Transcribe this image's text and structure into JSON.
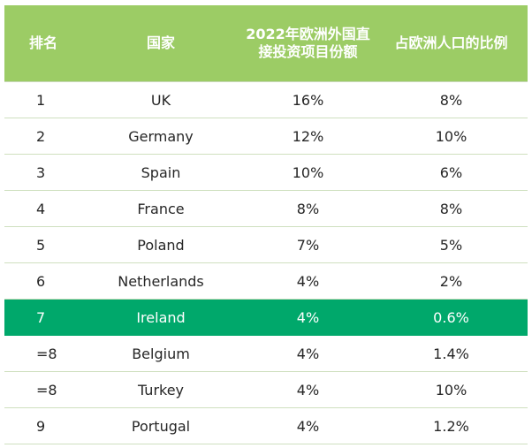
{
  "chart_data": {
    "type": "table",
    "columns": [
      "排名",
      "国家",
      "2022年欧洲外国直接投资项目份额",
      "占欧洲人口的比例"
    ],
    "rows": [
      {
        "rank": "1",
        "country": "UK",
        "fdi_share": "16%",
        "pop_share": "8%"
      },
      {
        "rank": "2",
        "country": "Germany",
        "fdi_share": "12%",
        "pop_share": "10%"
      },
      {
        "rank": "3",
        "country": "Spain",
        "fdi_share": "10%",
        "pop_share": "6%"
      },
      {
        "rank": "4",
        "country": "France",
        "fdi_share": "8%",
        "pop_share": "8%"
      },
      {
        "rank": "5",
        "country": "Poland",
        "fdi_share": "7%",
        "pop_share": "5%"
      },
      {
        "rank": "6",
        "country": "Netherlands",
        "fdi_share": "4%",
        "pop_share": "2%"
      },
      {
        "rank": "7",
        "country": "Ireland",
        "fdi_share": "4%",
        "pop_share": "0.6%",
        "highlight": true
      },
      {
        "rank": "=8",
        "country": "Belgium",
        "fdi_share": "4%",
        "pop_share": "1.4%"
      },
      {
        "rank": "=8",
        "country": "Turkey",
        "fdi_share": "4%",
        "pop_share": "10%"
      },
      {
        "rank": "9",
        "country": "Portugal",
        "fdi_share": "4%",
        "pop_share": "1.2%"
      }
    ]
  },
  "colors": {
    "header_background": "#9ccc65",
    "header_text": "#ffffff",
    "highlight_row": "#00a86b",
    "row_divider": "#cfe0bf"
  }
}
